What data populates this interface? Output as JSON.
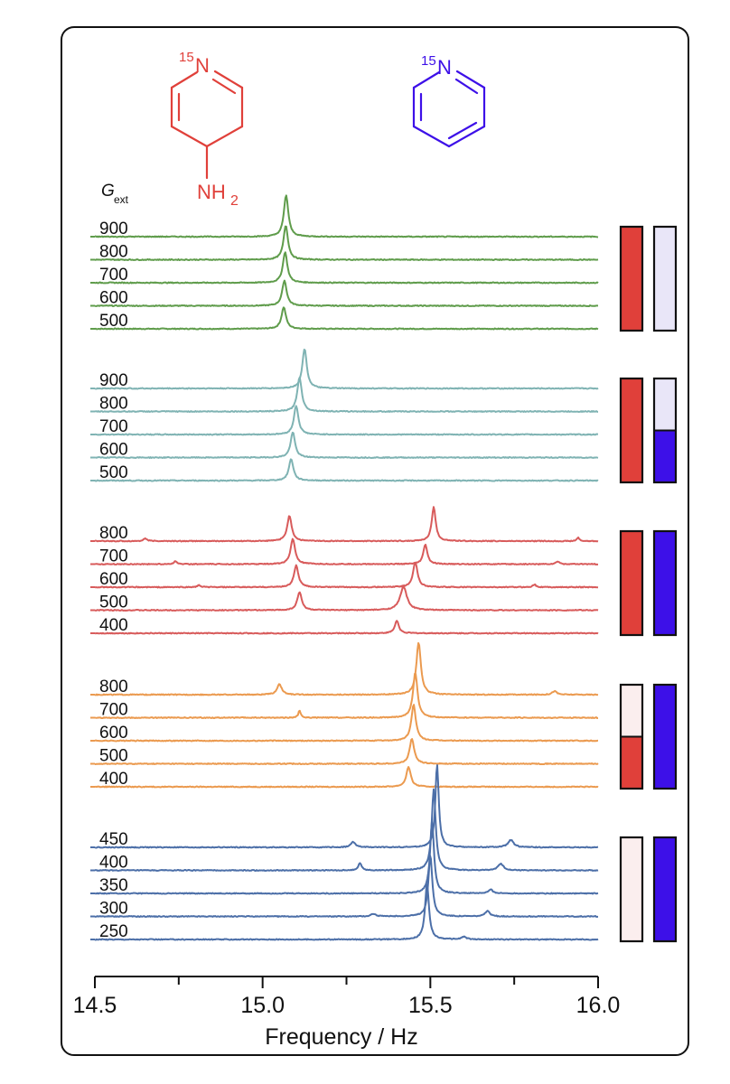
{
  "chart_data": {
    "type": "line",
    "title": "",
    "xlabel": "Frequency / Hz",
    "ylabel": "",
    "xlim": [
      14.5,
      16.0
    ],
    "xticks": [
      14.5,
      15.0,
      15.5,
      16.0
    ],
    "tick_labels": [
      "14.5",
      "15.0",
      "15.5",
      "16.0"
    ],
    "stack_label": {
      "main": "G",
      "sub": "ext"
    },
    "molecules": [
      {
        "name": "4-aminopyridine-15N",
        "isotope": "15",
        "atom": "N",
        "substituent_main": "NH",
        "substituent_sub": "2",
        "color": "#e0403a"
      },
      {
        "name": "pyridine-15N",
        "isotope": "15",
        "atom": "N",
        "color": "#3d10e8"
      }
    ],
    "groups": [
      {
        "color": "#5f9c4b",
        "bar_amine": [
          {
            "color": "#e0403a",
            "fraction": 1.0
          }
        ],
        "bar_pyridine": [
          {
            "color": "#e9e6f8",
            "fraction": 1.0
          }
        ],
        "series": [
          {
            "name": "900",
            "peaks": [
              {
                "x": 15.07,
                "h": 46,
                "w": 0.008
              }
            ]
          },
          {
            "name": "800",
            "peaks": [
              {
                "x": 15.069,
                "h": 38,
                "w": 0.008
              }
            ]
          },
          {
            "name": "700",
            "peaks": [
              {
                "x": 15.067,
                "h": 34,
                "w": 0.008
              }
            ]
          },
          {
            "name": "600",
            "peaks": [
              {
                "x": 15.065,
                "h": 28,
                "w": 0.008
              }
            ]
          },
          {
            "name": "500",
            "peaks": [
              {
                "x": 15.063,
                "h": 24,
                "w": 0.008
              }
            ]
          }
        ]
      },
      {
        "color": "#7fb3b3",
        "bar_amine": [
          {
            "color": "#e0403a",
            "fraction": 1.0
          }
        ],
        "bar_pyridine": [
          {
            "color": "#e9e6f8",
            "fraction": 0.5
          },
          {
            "color": "#3d10e8",
            "fraction": 0.5
          }
        ],
        "series": [
          {
            "name": "900",
            "peaks": [
              {
                "x": 15.125,
                "h": 44,
                "w": 0.008
              }
            ]
          },
          {
            "name": "800",
            "peaks": [
              {
                "x": 15.11,
                "h": 38,
                "w": 0.008
              }
            ]
          },
          {
            "name": "700",
            "peaks": [
              {
                "x": 15.1,
                "h": 32,
                "w": 0.008
              }
            ]
          },
          {
            "name": "600",
            "peaks": [
              {
                "x": 15.09,
                "h": 28,
                "w": 0.008
              }
            ]
          },
          {
            "name": "500",
            "peaks": [
              {
                "x": 15.085,
                "h": 24,
                "w": 0.008
              }
            ]
          }
        ]
      },
      {
        "color": "#d85b5b",
        "bar_amine": [
          {
            "color": "#e0403a",
            "fraction": 1.0
          }
        ],
        "bar_pyridine": [
          {
            "color": "#3d10e8",
            "fraction": 1.0
          }
        ],
        "series": [
          {
            "name": "800",
            "peaks": [
              {
                "x": 15.08,
                "h": 28,
                "w": 0.008
              },
              {
                "x": 15.51,
                "h": 38,
                "w": 0.007
              },
              {
                "x": 14.65,
                "h": 3,
                "w": 0.006
              },
              {
                "x": 15.94,
                "h": 4,
                "w": 0.004
              }
            ]
          },
          {
            "name": "700",
            "peaks": [
              {
                "x": 15.09,
                "h": 28,
                "w": 0.008
              },
              {
                "x": 15.485,
                "h": 22,
                "w": 0.007
              },
              {
                "x": 14.74,
                "h": 3,
                "w": 0.006
              },
              {
                "x": 15.88,
                "h": 3,
                "w": 0.006
              }
            ]
          },
          {
            "name": "600",
            "peaks": [
              {
                "x": 15.1,
                "h": 24,
                "w": 0.008
              },
              {
                "x": 15.455,
                "h": 28,
                "w": 0.008
              },
              {
                "x": 14.81,
                "h": 2,
                "w": 0.006
              },
              {
                "x": 15.81,
                "h": 3,
                "w": 0.006
              }
            ]
          },
          {
            "name": "500",
            "peaks": [
              {
                "x": 15.11,
                "h": 20,
                "w": 0.008
              },
              {
                "x": 15.42,
                "h": 26,
                "w": 0.012
              }
            ]
          },
          {
            "name": "400",
            "peaks": [
              {
                "x": 15.4,
                "h": 14,
                "w": 0.007
              }
            ]
          }
        ]
      },
      {
        "color": "#eb9a4f",
        "bar_amine": [
          {
            "color": "#fbeeee",
            "fraction": 0.5
          },
          {
            "color": "#e0403a",
            "fraction": 0.5
          }
        ],
        "bar_pyridine": [
          {
            "color": "#3d10e8",
            "fraction": 1.0
          }
        ],
        "series": [
          {
            "name": "800",
            "peaks": [
              {
                "x": 15.465,
                "h": 58,
                "w": 0.008
              },
              {
                "x": 15.05,
                "h": 12,
                "w": 0.008
              },
              {
                "x": 15.87,
                "h": 4,
                "w": 0.008
              }
            ]
          },
          {
            "name": "700",
            "peaks": [
              {
                "x": 15.455,
                "h": 50,
                "w": 0.008
              },
              {
                "x": 15.11,
                "h": 8,
                "w": 0.004
              }
            ]
          },
          {
            "name": "600",
            "peaks": [
              {
                "x": 15.45,
                "h": 40,
                "w": 0.008
              }
            ]
          },
          {
            "name": "500",
            "peaks": [
              {
                "x": 15.445,
                "h": 28,
                "w": 0.008
              }
            ]
          },
          {
            "name": "400",
            "peaks": [
              {
                "x": 15.435,
                "h": 22,
                "w": 0.008
              }
            ]
          }
        ]
      },
      {
        "color": "#4c6fa8",
        "bar_amine": [
          {
            "color": "#fbeeee",
            "fraction": 1.0
          }
        ],
        "bar_pyridine": [
          {
            "color": "#3d10e8",
            "fraction": 1.0
          }
        ],
        "series": [
          {
            "name": "450",
            "peaks": [
              {
                "x": 15.52,
                "h": 92,
                "w": 0.006
              },
              {
                "x": 15.27,
                "h": 6,
                "w": 0.008
              },
              {
                "x": 15.74,
                "h": 8,
                "w": 0.01
              }
            ]
          },
          {
            "name": "400",
            "peaks": [
              {
                "x": 15.51,
                "h": 90,
                "w": 0.007
              },
              {
                "x": 15.29,
                "h": 8,
                "w": 0.006
              },
              {
                "x": 15.71,
                "h": 7,
                "w": 0.01
              }
            ]
          },
          {
            "name": "350",
            "peaks": [
              {
                "x": 15.505,
                "h": 80,
                "w": 0.007
              },
              {
                "x": 15.68,
                "h": 4,
                "w": 0.008
              }
            ]
          },
          {
            "name": "300",
            "peaks": [
              {
                "x": 15.5,
                "h": 68,
                "w": 0.007
              },
              {
                "x": 15.67,
                "h": 6,
                "w": 0.008
              },
              {
                "x": 15.33,
                "h": 3,
                "w": 0.008
              }
            ]
          },
          {
            "name": "250",
            "peaks": [
              {
                "x": 15.49,
                "h": 62,
                "w": 0.007
              },
              {
                "x": 15.6,
                "h": 3,
                "w": 0.008
              }
            ]
          }
        ]
      }
    ]
  }
}
